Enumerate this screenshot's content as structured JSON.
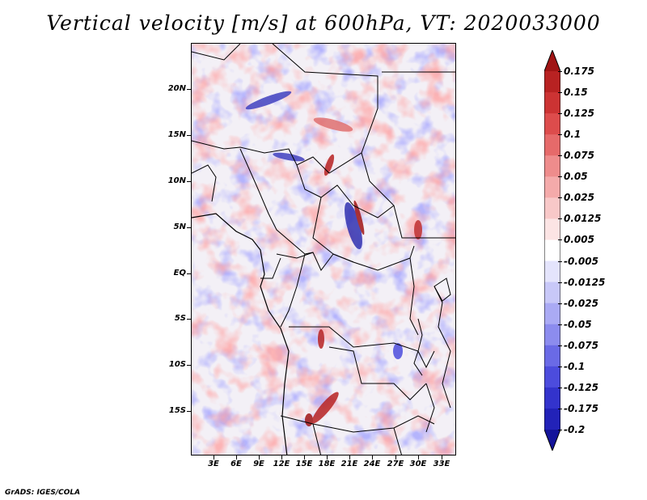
{
  "title": "Vertical velocity [m/s] at 600hPa, VT: 2020033000",
  "footer": "GrADS: IGES/COLA",
  "map": {
    "lat_labels": [
      "20N",
      "15N",
      "10N",
      "5N",
      "EQ",
      "5S",
      "10S",
      "15S"
    ],
    "lon_labels": [
      "3E",
      "6E",
      "9E",
      "12E",
      "15E",
      "18E",
      "21E",
      "24E",
      "27E",
      "30E",
      "33E"
    ],
    "lat_range": [
      -20.5,
      24
    ],
    "lon_range": [
      0,
      35
    ],
    "field": "vertical velocity",
    "level": "600hPa",
    "valid_time": "2020033000"
  },
  "colorbar": {
    "labels": [
      "0.175",
      "0.15",
      "0.125",
      "0.1",
      "0.075",
      "0.05",
      "0.025",
      "0.0125",
      "0.005",
      "-0.005",
      "-0.0125",
      "-0.025",
      "-0.05",
      "-0.075",
      "-0.1",
      "-0.125",
      "-0.175",
      "-0.2"
    ],
    "colors": [
      "#a01414",
      "#b82222",
      "#cc3333",
      "#dd4c4c",
      "#e66a6a",
      "#ee8c8c",
      "#f4aaaa",
      "#f8c8c8",
      "#fce4e4",
      "#ffffff",
      "#e4e4fc",
      "#c8c8f8",
      "#aaaaf4",
      "#8c8cee",
      "#6a6ae6",
      "#4c4cdd",
      "#3333cc",
      "#2222b8",
      "#14149a"
    ]
  }
}
